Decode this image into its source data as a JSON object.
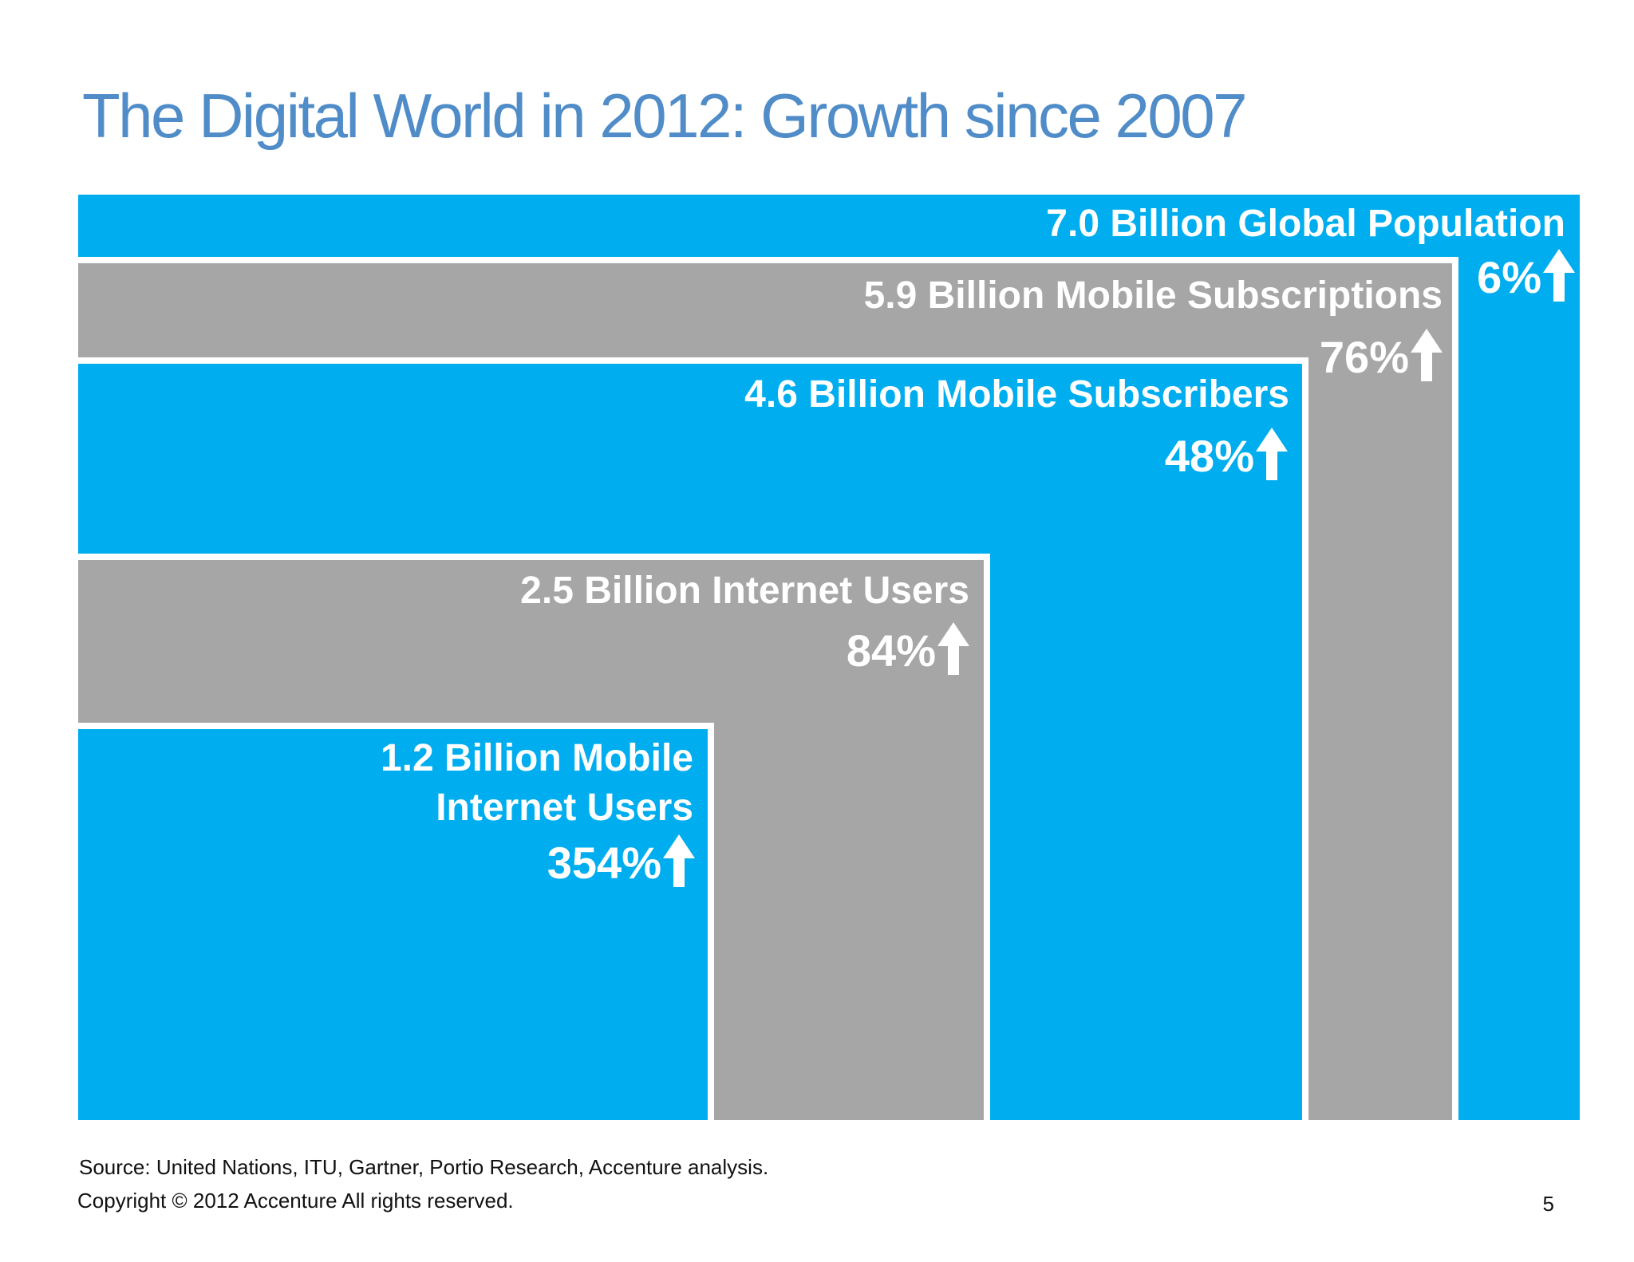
{
  "title": "The Digital World in 2012: Growth since 2007",
  "colors": {
    "title": "#4f8cc8",
    "blue": "#00aeef",
    "gray": "#a6a6a7",
    "text": "#ffffff"
  },
  "chart_data": {
    "type": "nested-area",
    "title": "The Digital World in 2012: Growth since 2007",
    "series": [
      {
        "label": "7.0 Billion Global Population",
        "value_billion": 7.0,
        "growth_pct": 6,
        "growth_label": "6%",
        "color": "blue"
      },
      {
        "label": "5.9 Billion Mobile Subscriptions",
        "value_billion": 5.9,
        "growth_pct": 76,
        "growth_label": "76%",
        "color": "gray"
      },
      {
        "label": "4.6 Billion Mobile Subscribers",
        "value_billion": 4.6,
        "growth_pct": 48,
        "growth_label": "48%",
        "color": "blue"
      },
      {
        "label": "2.5 Billion Internet Users",
        "value_billion": 2.5,
        "growth_pct": 84,
        "growth_label": "84%",
        "color": "gray"
      },
      {
        "label": "1.2 Billion Mobile\nInternet Users",
        "value_billion": 1.2,
        "growth_pct": 354,
        "growth_label": "354%",
        "color": "blue"
      }
    ]
  },
  "footer": {
    "source": "Source: United Nations, ITU, Gartner, Portio Research, Accenture analysis.",
    "copyright": "Copyright © 2012 Accenture  All rights reserved.",
    "page_number": "5"
  }
}
